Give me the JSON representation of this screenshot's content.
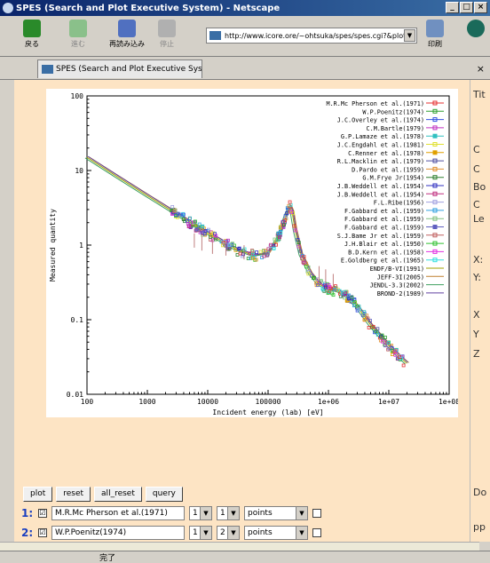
{
  "window": {
    "title": "SPES (Search and Plot Executive System) - Netscape",
    "buttons": [
      "_",
      "□",
      "×"
    ]
  },
  "toolbar": {
    "back_label": "戻る",
    "forward_label": "進む",
    "reload_label": "再読み込み",
    "stop_label": "停止",
    "url": "http://www.icore.ore/~ohtsuka/spes/spes.cgi?&plot",
    "print_label": "印刷"
  },
  "tab": {
    "label": "SPES (Search and Plot Executive Syste..",
    "close": "×"
  },
  "right_panel": {
    "items": [
      "Tit",
      "C",
      "C",
      "Bo",
      "C",
      "Le",
      "X:",
      "Y:",
      "X",
      "Y",
      "Z",
      "Do",
      "pp"
    ]
  },
  "controls": {
    "buttons": [
      "plot",
      "reset",
      "all_reset",
      "query"
    ],
    "rows": [
      {
        "num": "1:",
        "checked": "☑",
        "name": "M.R.Mc Pherson et al.(1971)",
        "sel1": "1",
        "sel2": "1",
        "mode": "points"
      },
      {
        "num": "2:",
        "checked": "☑",
        "name": "W.P.Poenitz(1974)",
        "sel1": "1",
        "sel2": "2",
        "mode": "points"
      }
    ]
  },
  "status": {
    "text": "完了"
  },
  "chart_data": {
    "type": "scatter",
    "xlabel": "Incident energy (lab) [eV]",
    "ylabel": "Measured quantity",
    "xscale": "log",
    "yscale": "log",
    "xlim": [
      100,
      100000000
    ],
    "ylim": [
      0.01,
      100
    ],
    "xticks": [
      "100",
      "1000",
      "10000",
      "100000",
      "1e+06",
      "1e+07",
      "1e+08"
    ],
    "yticks": [
      "100",
      "10",
      "1",
      "0.1",
      "0.01"
    ],
    "legend_placement": "top-right",
    "series": [
      {
        "name": "M.R.Mc Pherson et al.(1971)",
        "color": "#e63030",
        "marker": "+"
      },
      {
        "name": "W.P.Poenitz(1974)",
        "color": "#30a030",
        "marker": "x"
      },
      {
        "name": "J.C.Overley et al.(1974)",
        "color": "#3050e0",
        "marker": "*"
      },
      {
        "name": "C.M.Bartle(1979)",
        "color": "#c030c0",
        "marker": "box"
      },
      {
        "name": "G.P.Lamaze et al.(1978)",
        "color": "#30c0c0",
        "marker": "fbox"
      },
      {
        "name": "J.C.Engdahl et al.(1981)",
        "color": "#e0e030",
        "marker": "circ"
      },
      {
        "name": "C.Renner et al.(1978)",
        "color": "#e0a000",
        "marker": "fcirc"
      },
      {
        "name": "R.L.Macklin et al.(1979)",
        "color": "#5050a0",
        "marker": "x"
      },
      {
        "name": "D.Pardo et al.(1959)",
        "color": "#e09030",
        "marker": "+"
      },
      {
        "name": "G.M.Frye Jr(1954)",
        "color": "#308030",
        "marker": "box"
      },
      {
        "name": "J.B.Weddell et al.(1954)",
        "color": "#3030c0",
        "marker": "*"
      },
      {
        "name": "J.B.Weddell et al.(1954)",
        "color": "#c03080",
        "marker": "+"
      },
      {
        "name": "F.L.Ribe(1956)",
        "color": "#a0a0e0",
        "marker": "x"
      },
      {
        "name": "F.Gabbard et al.(1959)",
        "color": "#30a0e0",
        "marker": "x"
      },
      {
        "name": "F.Gabbard et al.(1959)",
        "color": "#80c080",
        "marker": "box"
      },
      {
        "name": "F.Gabbard et al.(1959)",
        "color": "#6060c0",
        "marker": "fbox"
      },
      {
        "name": "S.J.Bame Jr et al.(1959)",
        "color": "#c06060",
        "marker": "+"
      },
      {
        "name": "J.H.Blair et al.(1950)",
        "color": "#30c030",
        "marker": "*"
      },
      {
        "name": "B.D.Kern et al.(1958)",
        "color": "#e030e0",
        "marker": "x"
      },
      {
        "name": "E.Goldberg et al.(1965)",
        "color": "#30e0e0",
        "marker": "x"
      },
      {
        "name": "ENDF/B-VI(1991)",
        "color": "#a0a000",
        "marker": "line"
      },
      {
        "name": "JEFF-3I(2005)",
        "color": "#c08030",
        "marker": "line"
      },
      {
        "name": "JENDL-3.3(2002)",
        "color": "#40a060",
        "marker": "line"
      },
      {
        "name": "BROND-2(1989)",
        "color": "#6040a0",
        "marker": "line"
      }
    ],
    "curve": {
      "x": [
        100,
        300,
        1000,
        3000,
        10000,
        30000,
        60000,
        100000,
        150000,
        200000,
        230000,
        250000,
        280000,
        350000,
        500000,
        700000,
        1000000,
        1500000,
        2000000,
        3000000,
        5000000,
        8000000,
        10000000,
        15000000,
        20000000
      ],
      "y": [
        15,
        8.5,
        4.6,
        2.65,
        1.45,
        0.88,
        0.72,
        0.78,
        1.3,
        2.6,
        3.3,
        2.8,
        1.6,
        0.75,
        0.42,
        0.3,
        0.26,
        0.24,
        0.21,
        0.15,
        0.085,
        0.055,
        0.045,
        0.032,
        0.026
      ]
    }
  }
}
